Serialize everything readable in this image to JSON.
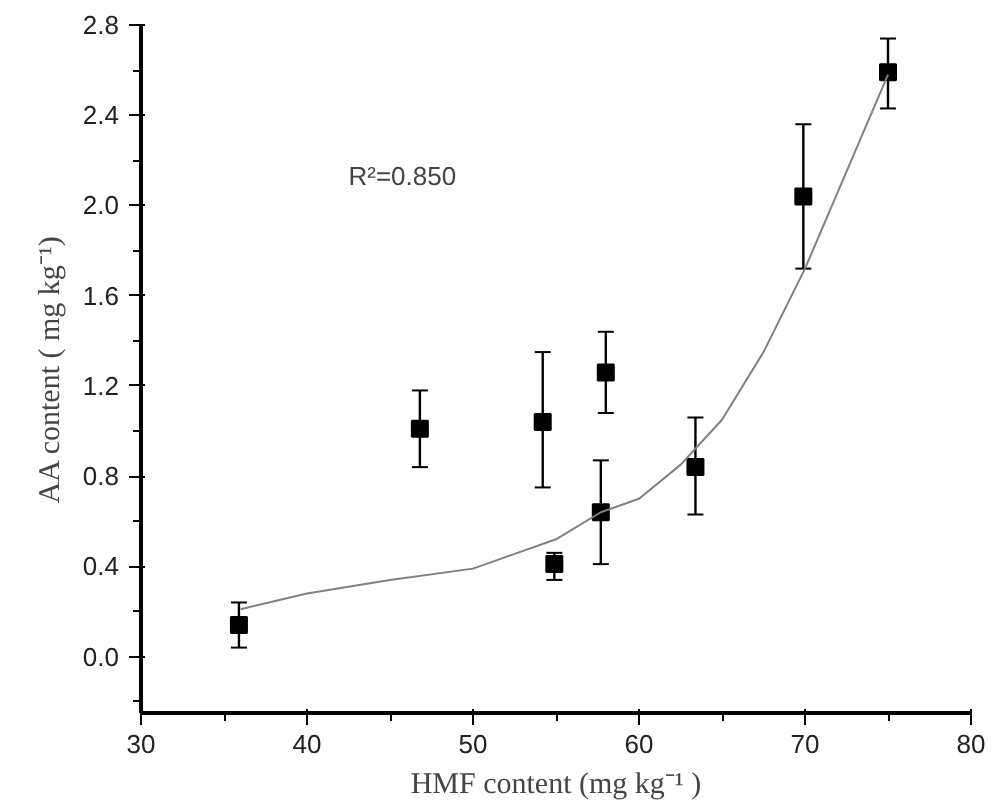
{
  "chart_data": {
    "type": "scatter",
    "xlabel": "HMF content (mg kg⁻¹ )",
    "ylabel": "AA content ( mg kg⁻¹)",
    "xlim": [
      30,
      80
    ],
    "xticks": [
      30,
      40,
      50,
      60,
      70,
      80
    ],
    "ylim": [
      -0.25,
      2.8
    ],
    "yticks": [
      {
        "value": 0,
        "label": "0.0"
      },
      0.4,
      0.8,
      1.2,
      1.6,
      {
        "value": 2,
        "label": "2.0"
      },
      2.4,
      2.8
    ],
    "grid": false,
    "marker": "square",
    "annotations": [
      "R²=0.850"
    ],
    "series": [
      {
        "color": "#000000",
        "x": [
          35.9,
          46.8,
          54.2,
          58.0,
          54.9,
          57.7,
          63.4,
          69.9,
          75.0
        ],
        "values": [
          0.14,
          1.01,
          1.04,
          1.26,
          0.41,
          0.64,
          0.84,
          2.04,
          2.59
        ],
        "errors": [
          [
            0.04,
            0.24
          ],
          [
            0.84,
            1.18
          ],
          [
            0.75,
            1.35
          ],
          [
            1.08,
            1.44
          ],
          [
            0.34,
            0.46
          ],
          [
            0.41,
            0.87
          ],
          [
            0.63,
            1.06
          ],
          [
            1.72,
            2.36
          ],
          [
            2.43,
            2.74
          ]
        ]
      },
      {
        "type": "line",
        "color": "#808080",
        "line_style": "solid",
        "marker": "none",
        "x": [
          36,
          40,
          45,
          50,
          55,
          57.7,
          60,
          62.5,
          65,
          67.5,
          70,
          72.5,
          75
        ],
        "values": [
          0.21,
          0.28,
          0.34,
          0.39,
          0.52,
          0.64,
          0.7,
          0.85,
          1.05,
          1.35,
          1.72,
          2.15,
          2.58
        ]
      }
    ]
  }
}
